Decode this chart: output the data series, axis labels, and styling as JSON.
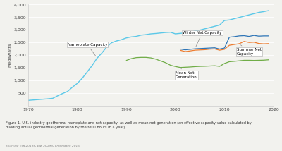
{
  "ylabel": "Megawatts",
  "xlim": [
    1970,
    2020
  ],
  "ylim": [
    0,
    4000
  ],
  "yticks": [
    500,
    1000,
    1500,
    2000,
    2500,
    3000,
    3500,
    4000
  ],
  "xticks": [
    1970,
    1980,
    1990,
    2000,
    2010,
    2020
  ],
  "caption": "Figure 1. U.S. industry geothermal nameplate and net capacity, as well as mean net generation (an effective capacity value calculated by\ndividing actual geothermal generation by the total hours in a year).",
  "source": "Sources: EIA 2019a, EIA 2019b, and Matek 2016",
  "bg_color": "#f2f2ee",
  "nameplate_color": "#5bc8e8",
  "winter_color": "#2e75b6",
  "summer_color": "#ed7d31",
  "mean_color": "#70ad47",
  "nameplate_x": [
    1970,
    1971,
    1972,
    1973,
    1974,
    1975,
    1976,
    1977,
    1978,
    1979,
    1980,
    1981,
    1982,
    1983,
    1984,
    1985,
    1986,
    1987,
    1988,
    1989,
    1990,
    1991,
    1992,
    1993,
    1994,
    1995,
    1996,
    1997,
    1998,
    1999,
    2000,
    2001,
    2002,
    2003,
    2004,
    2005,
    2006,
    2007,
    2008,
    2009,
    2010,
    2011,
    2012,
    2013,
    2014,
    2015,
    2016,
    2017,
    2018,
    2019
  ],
  "nameplate_y": [
    210,
    225,
    240,
    255,
    270,
    290,
    390,
    480,
    560,
    730,
    880,
    1080,
    1330,
    1580,
    1870,
    2080,
    2320,
    2490,
    2560,
    2610,
    2680,
    2720,
    2740,
    2790,
    2810,
    2840,
    2855,
    2875,
    2895,
    2905,
    2840,
    2860,
    2880,
    2900,
    2960,
    2990,
    3040,
    3090,
    3140,
    3190,
    3370,
    3390,
    3440,
    3490,
    3540,
    3590,
    3640,
    3690,
    3720,
    3760
  ],
  "winter_x": [
    2001,
    2002,
    2003,
    2004,
    2005,
    2006,
    2007,
    2008,
    2009,
    2010,
    2011,
    2012,
    2013,
    2014,
    2015,
    2016,
    2017,
    2018,
    2019
  ],
  "winter_y": [
    2240,
    2210,
    2230,
    2250,
    2260,
    2270,
    2280,
    2290,
    2240,
    2280,
    2710,
    2730,
    2760,
    2770,
    2740,
    2780,
    2750,
    2760,
    2760
  ],
  "summer_x": [
    2001,
    2002,
    2003,
    2004,
    2005,
    2006,
    2007,
    2008,
    2009,
    2010,
    2011,
    2012,
    2013,
    2014,
    2015,
    2016,
    2017,
    2018,
    2019
  ],
  "summer_y": [
    2190,
    2140,
    2165,
    2195,
    2205,
    2215,
    2235,
    2245,
    2195,
    2230,
    2390,
    2420,
    2450,
    2540,
    2500,
    2510,
    2460,
    2445,
    2455
  ],
  "mean_x": [
    1990,
    1991,
    1992,
    1993,
    1994,
    1995,
    1996,
    1997,
    1998,
    1999,
    2000,
    2001,
    2002,
    2003,
    2004,
    2005,
    2006,
    2007,
    2008,
    2009,
    2010,
    2011,
    2012,
    2013,
    2014,
    2015,
    2016,
    2017,
    2018,
    2019
  ],
  "mean_y": [
    1790,
    1860,
    1900,
    1910,
    1910,
    1890,
    1840,
    1770,
    1700,
    1600,
    1550,
    1510,
    1520,
    1530,
    1545,
    1555,
    1560,
    1570,
    1580,
    1555,
    1670,
    1740,
    1755,
    1775,
    1795,
    1795,
    1790,
    1795,
    1800,
    1815
  ]
}
